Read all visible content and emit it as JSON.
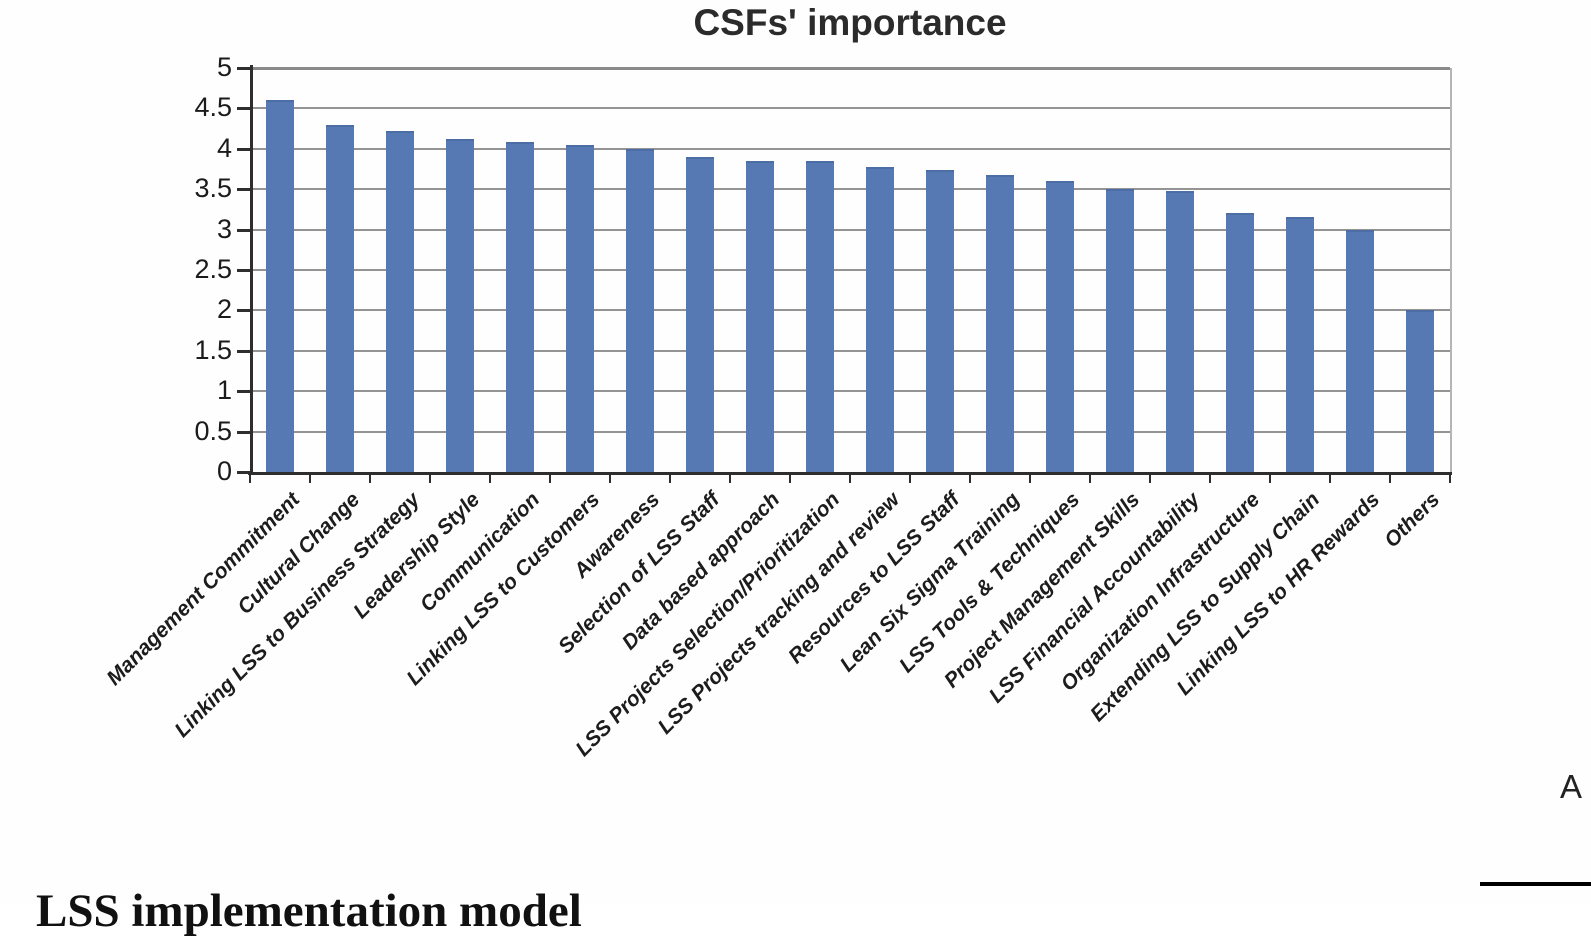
{
  "page": {
    "side_label": "A",
    "bottom_heading": "LSS implementation model"
  },
  "chart_data": {
    "type": "bar",
    "title": "CSFs' importance",
    "xlabel": "",
    "ylabel": "",
    "ylim": [
      0,
      5
    ],
    "ytick_step": 0.5,
    "ytick_labels": [
      "0",
      "0.5",
      "1",
      "1.5",
      "2",
      "2.5",
      "3",
      "3.5",
      "4",
      "4.5",
      "5"
    ],
    "grid": true,
    "legend": "none",
    "bar_color": "#5679b4",
    "categories": [
      "Management Commitment",
      "Cultural Change",
      "Linking LSS to Business Strategy",
      "Leadership Style",
      "Communication",
      "Linking LSS to Customers",
      "Awareness",
      "Selection of LSS Staff",
      "Data based approach",
      "LSS Projects Selection/Prioritization",
      "LSS Projects tracking and review",
      "Resources to LSS Staff",
      "Lean Six Sigma Training",
      "LSS Tools & Techniques",
      "Project Management Skills",
      "LSS Financial Accountability",
      "Organization Infrastructure",
      "Extending LSS to Supply Chain",
      "Linking LSS to HR Rewards",
      "Others"
    ],
    "values": [
      4.6,
      4.3,
      4.22,
      4.12,
      4.08,
      4.05,
      4.0,
      3.9,
      3.85,
      3.85,
      3.77,
      3.74,
      3.67,
      3.6,
      3.5,
      3.48,
      3.2,
      3.15,
      3.0,
      2.0
    ]
  }
}
